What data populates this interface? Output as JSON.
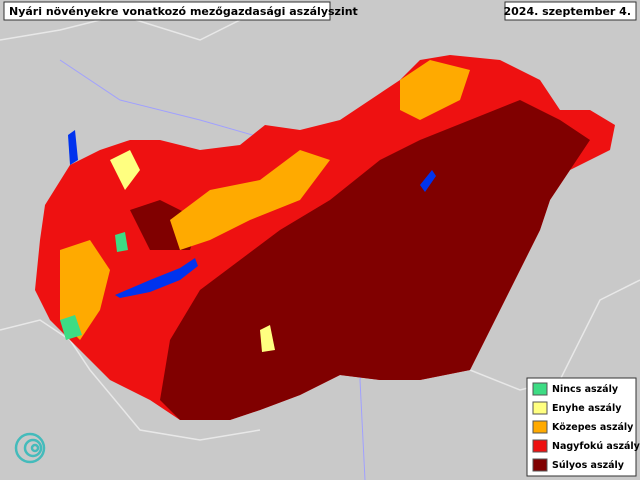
{
  "header": {
    "title": "Nyári növényekre vonatkozó mezőgazdasági aszályszint",
    "date": "2024. szeptember 4."
  },
  "legend": [
    {
      "label": "Nincs aszály",
      "color": "#3ddc84"
    },
    {
      "label": "Enyhe aszály",
      "color": "#ffff80"
    },
    {
      "label": "Közepes aszály",
      "color": "#ffaa00"
    },
    {
      "label": "Nagyfokú aszály",
      "color": "#ee1111"
    },
    {
      "label": "Súlyos aszály",
      "color": "#800000"
    }
  ]
}
